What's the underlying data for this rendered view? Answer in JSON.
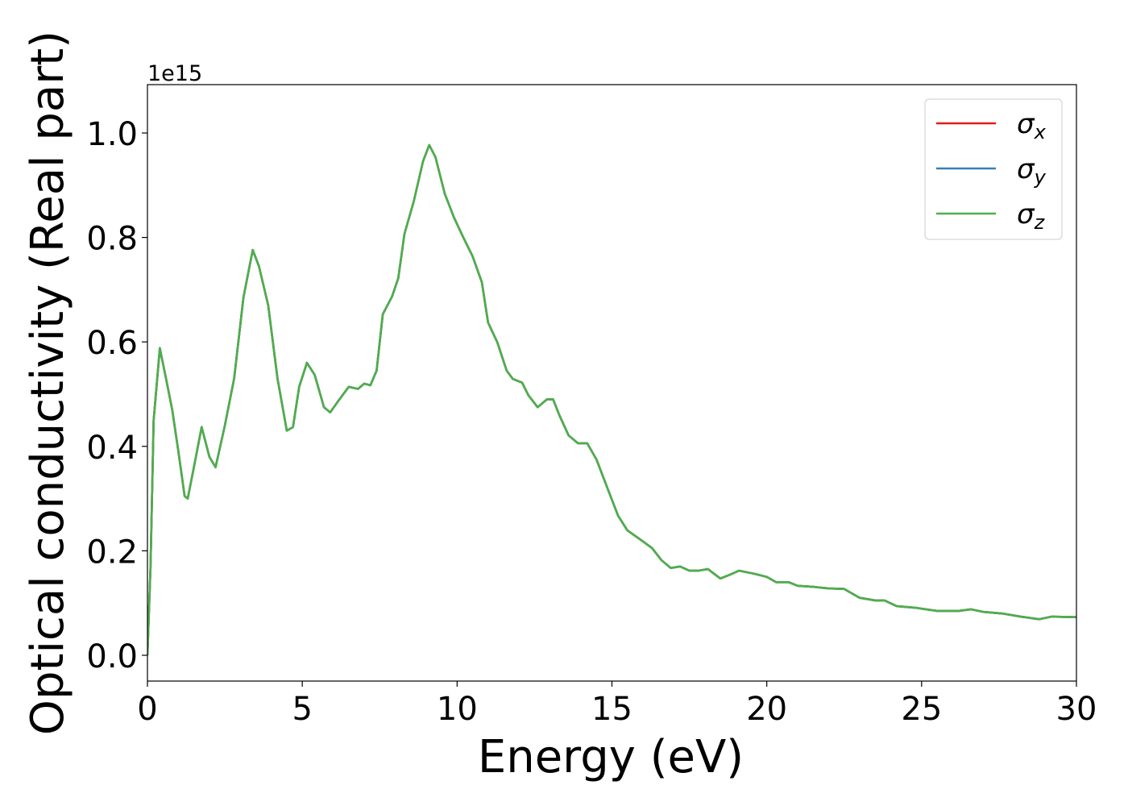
{
  "chart_data": {
    "type": "line",
    "x_label": "Energy (eV)",
    "y_label": "Optical conductivity (Real part)",
    "y_offset_label": "1e15",
    "xlim": [
      0,
      30
    ],
    "ylim": [
      -0.0494,
      1.0926
    ],
    "xticks": [
      0,
      5,
      10,
      15,
      20,
      25,
      30
    ],
    "yticks": [
      {
        "value": 0,
        "label": "0.0"
      },
      0.2,
      0.4,
      0.6,
      0.8,
      {
        "value": 1,
        "label": "1.0"
      }
    ],
    "legend": "upper right",
    "x": [
      0,
      0.1,
      0.2,
      0.4,
      0.6,
      0.8,
      1.0,
      1.2,
      1.3,
      1.5,
      1.75,
      2.0,
      2.2,
      2.5,
      2.8,
      3.1,
      3.4,
      3.6,
      3.9,
      4.2,
      4.5,
      4.7,
      4.9,
      5.15,
      5.4,
      5.7,
      5.9,
      6.2,
      6.5,
      6.8,
      7.0,
      7.2,
      7.4,
      7.6,
      7.9,
      8.1,
      8.3,
      8.6,
      8.9,
      9.1,
      9.3,
      9.6,
      9.9,
      10.2,
      10.5,
      10.8,
      11.0,
      11.3,
      11.6,
      11.8,
      12.1,
      12.3,
      12.6,
      12.9,
      13.1,
      13.3,
      13.6,
      13.9,
      14.2,
      14.5,
      14.9,
      15.2,
      15.5,
      16.0,
      16.3,
      16.6,
      16.9,
      17.2,
      17.5,
      17.8,
      18.1,
      18.5,
      18.8,
      19.1,
      19.6,
      20.0,
      20.3,
      20.7,
      21.0,
      21.5,
      22.0,
      22.5,
      23.0,
      23.5,
      23.8,
      24.2,
      24.8,
      25.5,
      26.2,
      26.6,
      27.0,
      27.6,
      28.2,
      28.8,
      29.2,
      30.0
    ],
    "series": [
      {
        "name": "σx",
        "color": "#e41a1c",
        "values": [
          0.0,
          0.17,
          0.45,
          0.588,
          0.53,
          0.47,
          0.39,
          0.305,
          0.3,
          0.36,
          0.437,
          0.38,
          0.36,
          0.44,
          0.53,
          0.685,
          0.776,
          0.745,
          0.67,
          0.53,
          0.43,
          0.437,
          0.514,
          0.56,
          0.537,
          0.475,
          0.465,
          0.49,
          0.514,
          0.51,
          0.52,
          0.517,
          0.545,
          0.653,
          0.687,
          0.722,
          0.807,
          0.869,
          0.946,
          0.977,
          0.954,
          0.884,
          0.838,
          0.8,
          0.764,
          0.714,
          0.637,
          0.599,
          0.545,
          0.529,
          0.522,
          0.498,
          0.475,
          0.49,
          0.49,
          0.46,
          0.421,
          0.406,
          0.406,
          0.375,
          0.313,
          0.267,
          0.239,
          0.218,
          0.205,
          0.182,
          0.167,
          0.17,
          0.162,
          0.162,
          0.165,
          0.147,
          0.154,
          0.162,
          0.156,
          0.15,
          0.14,
          0.14,
          0.133,
          0.131,
          0.128,
          0.127,
          0.11,
          0.105,
          0.105,
          0.094,
          0.091,
          0.085,
          0.085,
          0.088,
          0.083,
          0.08,
          0.074,
          0.069,
          0.074,
          0.073
        ]
      },
      {
        "name": "σy",
        "color": "#377eb8",
        "values": [
          0.0,
          0.17,
          0.45,
          0.588,
          0.53,
          0.47,
          0.39,
          0.305,
          0.3,
          0.36,
          0.437,
          0.38,
          0.36,
          0.44,
          0.53,
          0.685,
          0.776,
          0.745,
          0.67,
          0.53,
          0.43,
          0.437,
          0.514,
          0.56,
          0.537,
          0.475,
          0.465,
          0.49,
          0.514,
          0.51,
          0.52,
          0.517,
          0.545,
          0.653,
          0.687,
          0.722,
          0.807,
          0.869,
          0.946,
          0.977,
          0.954,
          0.884,
          0.838,
          0.8,
          0.764,
          0.714,
          0.637,
          0.599,
          0.545,
          0.529,
          0.522,
          0.498,
          0.475,
          0.49,
          0.49,
          0.46,
          0.421,
          0.406,
          0.406,
          0.375,
          0.313,
          0.267,
          0.239,
          0.218,
          0.205,
          0.182,
          0.167,
          0.17,
          0.162,
          0.162,
          0.165,
          0.147,
          0.154,
          0.162,
          0.156,
          0.15,
          0.14,
          0.14,
          0.133,
          0.131,
          0.128,
          0.127,
          0.11,
          0.105,
          0.105,
          0.094,
          0.091,
          0.085,
          0.085,
          0.088,
          0.083,
          0.08,
          0.074,
          0.069,
          0.074,
          0.073
        ]
      },
      {
        "name": "σz",
        "color": "#4daf4a",
        "values": [
          0.0,
          0.17,
          0.45,
          0.588,
          0.53,
          0.47,
          0.39,
          0.305,
          0.3,
          0.36,
          0.437,
          0.38,
          0.36,
          0.44,
          0.53,
          0.685,
          0.776,
          0.745,
          0.67,
          0.53,
          0.43,
          0.437,
          0.514,
          0.56,
          0.537,
          0.475,
          0.465,
          0.49,
          0.514,
          0.51,
          0.52,
          0.517,
          0.545,
          0.653,
          0.687,
          0.722,
          0.807,
          0.869,
          0.946,
          0.977,
          0.954,
          0.884,
          0.838,
          0.8,
          0.764,
          0.714,
          0.637,
          0.599,
          0.545,
          0.529,
          0.522,
          0.498,
          0.475,
          0.49,
          0.49,
          0.46,
          0.421,
          0.406,
          0.406,
          0.375,
          0.313,
          0.267,
          0.239,
          0.218,
          0.205,
          0.182,
          0.167,
          0.17,
          0.162,
          0.162,
          0.165,
          0.147,
          0.154,
          0.162,
          0.156,
          0.15,
          0.14,
          0.14,
          0.133,
          0.131,
          0.128,
          0.127,
          0.11,
          0.105,
          0.105,
          0.094,
          0.091,
          0.085,
          0.085,
          0.088,
          0.083,
          0.08,
          0.074,
          0.069,
          0.074,
          0.073
        ]
      }
    ]
  }
}
